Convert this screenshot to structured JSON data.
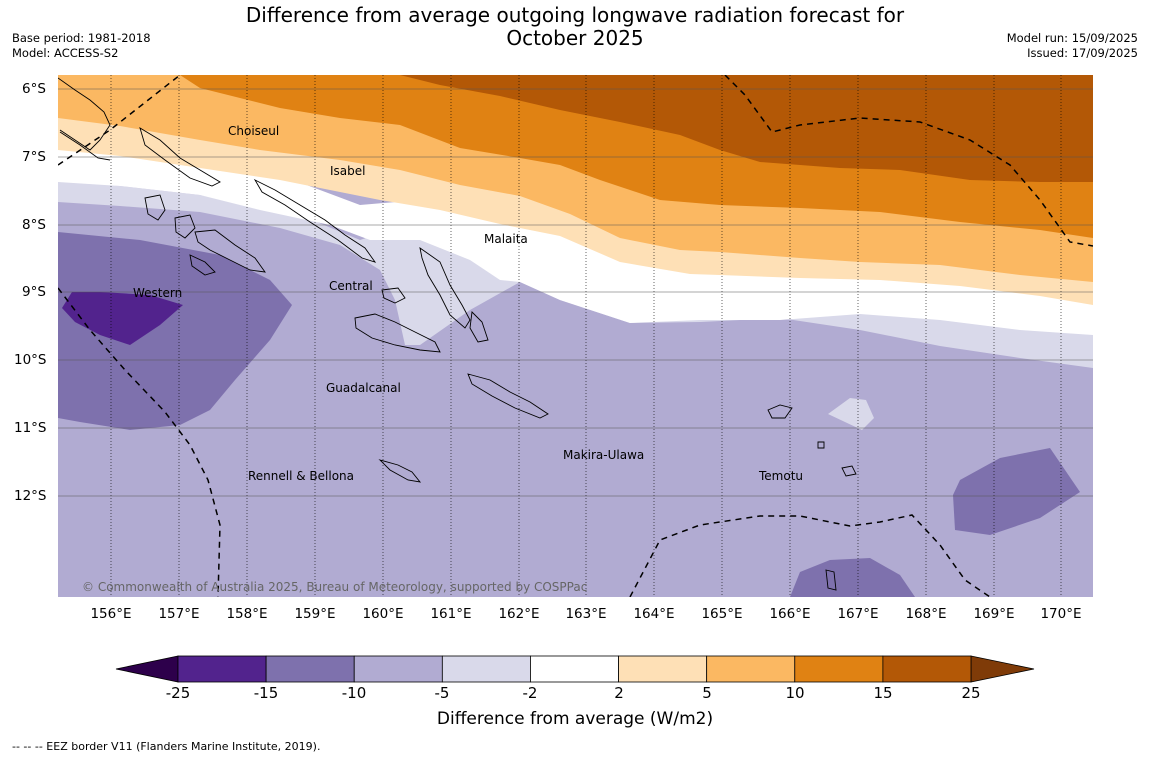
{
  "title": {
    "line1": "Difference from average outgoing longwave radiation forecast for",
    "line2": "October 2025"
  },
  "meta_left": {
    "base_period": "Base period: 1981-2018",
    "model": "Model: ACCESS-S2"
  },
  "meta_right": {
    "model_run": "Model run: 15/09/2025",
    "issued": "Issued: 17/09/2025"
  },
  "copyright": "© Commonwealth of Australia 2025, Bureau of Meteorology, supported by COSPPac",
  "lat_labels": [
    "6°S",
    "7°S",
    "8°S",
    "9°S",
    "10°S",
    "11°S",
    "12°S"
  ],
  "lon_labels": [
    "156°E",
    "157°E",
    "158°E",
    "159°E",
    "160°E",
    "161°E",
    "162°E",
    "163°E",
    "164°E",
    "165°E",
    "166°E",
    "167°E",
    "168°E",
    "169°E",
    "170°E"
  ],
  "places": [
    {
      "name": "Choiseul"
    },
    {
      "name": "Isabel"
    },
    {
      "name": "Malaita"
    },
    {
      "name": "Western"
    },
    {
      "name": "Central"
    },
    {
      "name": "Guadalcanal"
    },
    {
      "name": "Rennell & Bellona"
    },
    {
      "name": "Makira-Ulawa"
    },
    {
      "name": "Temotu"
    }
  ],
  "colorbar": {
    "label": "Difference from average (W/m2)",
    "ticks": [
      "-25",
      "-15",
      "-10",
      "-5",
      "-2",
      "2",
      "5",
      "10",
      "15",
      "25"
    ],
    "colors": [
      "#52238d",
      "#7e71ad",
      "#b1abd2",
      "#d9d9ea",
      "#ffffff",
      "#fee0b6",
      "#fbb862",
      "#e08213",
      "#b35806"
    ],
    "under_color": "#2d004b",
    "over_color": "#7f3b08"
  },
  "footnote": "--  --  -- EEZ border V11 (Flanders Marine Institute, 2019)."
}
